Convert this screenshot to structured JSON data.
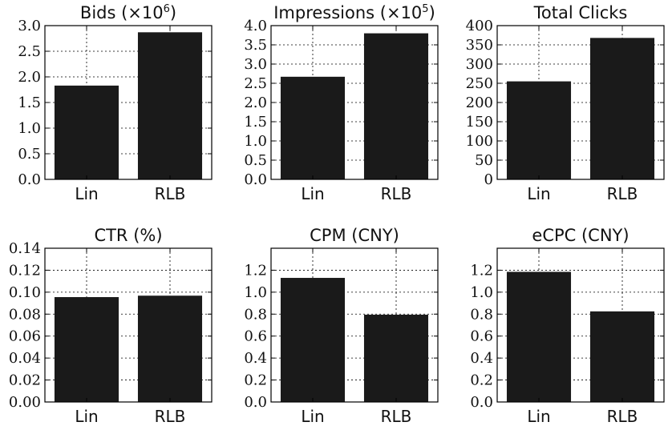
{
  "chart_data": [
    {
      "type": "bar",
      "title": "Bids (×10",
      "title_sup": "6",
      "title_suffix": ")",
      "categories": [
        "Lin",
        "RLB"
      ],
      "values": [
        1.83,
        2.87
      ],
      "ylim": [
        0,
        3.0
      ],
      "yticks": [
        0.0,
        0.5,
        1.0,
        1.5,
        2.0,
        2.5,
        3.0
      ],
      "ytick_labels": [
        "0.0",
        "0.5",
        "1.0",
        "1.5",
        "2.0",
        "2.5",
        "3.0"
      ],
      "grid": true
    },
    {
      "type": "bar",
      "title": "Impressions (×10",
      "title_sup": "5",
      "title_suffix": ")",
      "categories": [
        "Lin",
        "RLB"
      ],
      "values": [
        2.67,
        3.8
      ],
      "ylim": [
        0,
        4.0
      ],
      "yticks": [
        0.0,
        0.5,
        1.0,
        1.5,
        2.0,
        2.5,
        3.0,
        3.5,
        4.0
      ],
      "ytick_labels": [
        "0.0",
        "0.5",
        "1.0",
        "1.5",
        "2.0",
        "2.5",
        "3.0",
        "3.5",
        "4.0"
      ],
      "grid": true
    },
    {
      "type": "bar",
      "title": "Total Clicks",
      "categories": [
        "Lin",
        "RLB"
      ],
      "values": [
        255,
        368
      ],
      "ylim": [
        0,
        400
      ],
      "yticks": [
        0,
        50,
        100,
        150,
        200,
        250,
        300,
        350,
        400
      ],
      "ytick_labels": [
        "0",
        "50",
        "100",
        "150",
        "200",
        "250",
        "300",
        "350",
        "400"
      ],
      "grid": true
    },
    {
      "type": "bar",
      "title": "CTR (%)",
      "categories": [
        "Lin",
        "RLB"
      ],
      "values": [
        0.0955,
        0.0968
      ],
      "ylim": [
        0,
        0.14
      ],
      "yticks": [
        0.0,
        0.02,
        0.04,
        0.06,
        0.08,
        0.1,
        0.12,
        0.14
      ],
      "ytick_labels": [
        "0.00",
        "0.02",
        "0.04",
        "0.06",
        "0.08",
        "0.10",
        "0.12",
        "0.14"
      ],
      "grid": true
    },
    {
      "type": "bar",
      "title": "CPM (CNY)",
      "categories": [
        "Lin",
        "RLB"
      ],
      "values": [
        1.13,
        0.795
      ],
      "ylim": [
        0,
        1.4
      ],
      "yticks": [
        0.0,
        0.2,
        0.4,
        0.6,
        0.8,
        1.0,
        1.2
      ],
      "ytick_labels": [
        "0.0",
        "0.2",
        "0.4",
        "0.6",
        "0.8",
        "1.0",
        "1.2"
      ],
      "grid": true
    },
    {
      "type": "bar",
      "title": "eCPC (CNY)",
      "categories": [
        "Lin",
        "RLB"
      ],
      "values": [
        1.185,
        0.825
      ],
      "ylim": [
        0,
        1.4
      ],
      "yticks": [
        0.0,
        0.2,
        0.4,
        0.6,
        0.8,
        1.0,
        1.2
      ],
      "ytick_labels": [
        "0.0",
        "0.2",
        "0.4",
        "0.6",
        "0.8",
        "1.0",
        "1.2"
      ],
      "grid": true
    }
  ],
  "colors": {
    "bar": "#1a1a1a",
    "frame": "#000000"
  }
}
